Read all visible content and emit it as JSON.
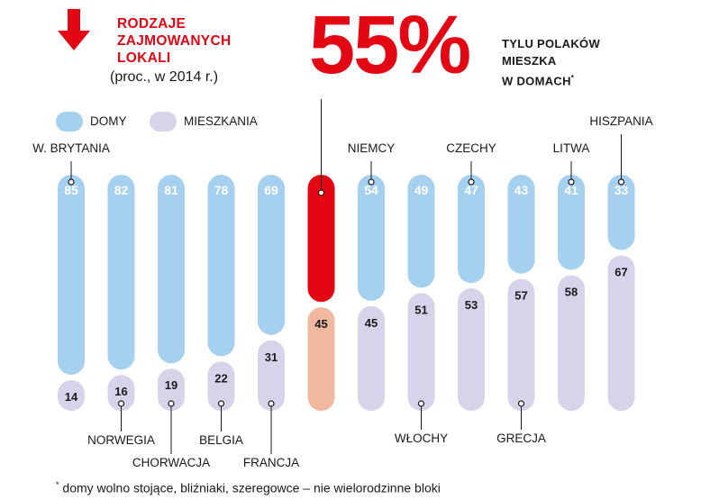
{
  "header": {
    "title_lines": [
      "RODZAJE",
      "ZAJMOWANYCH",
      "LOKALI"
    ],
    "subtitle": "(proc., w 2014 r.)",
    "highlight_value": "55%",
    "highlight_text_lines": [
      "TYLU POLAKÓW",
      "MIESZKA",
      "W DOMACH"
    ],
    "highlight_marker": "*"
  },
  "legend": [
    {
      "label": "DOMY",
      "color": "#a5d0ef"
    },
    {
      "label": "MIESZKANIA",
      "color": "#d6d3ea"
    }
  ],
  "colors": {
    "domy": "#a5d0ef",
    "mieszkania": "#d6d3ea",
    "poland_domy": "#e30613",
    "poland_mieszkania": "#f0b89f",
    "accent": "#e30613"
  },
  "chart_data": {
    "type": "bar",
    "stacked": true,
    "orientation": "vertical",
    "categories": [
      "W. BRYTANIA",
      "NORWEGIA",
      "CHORWACJA",
      "BELGIA",
      "FRANCJA",
      "",
      "NIEMCY",
      "WŁOCHY",
      "CZECHY",
      "GRECJA",
      "LITWA",
      "HISZPANIA"
    ],
    "label_position": [
      "top",
      "bottom",
      "bottom",
      "bottom",
      "bottom",
      "top",
      "top",
      "bottom",
      "top",
      "bottom",
      "top",
      "top"
    ],
    "series": [
      {
        "name": "DOMY",
        "values": [
          85,
          82,
          81,
          78,
          69,
          55,
          54,
          49,
          47,
          43,
          41,
          33
        ]
      },
      {
        "name": "MIESZKANIA",
        "values": [
          14,
          16,
          19,
          22,
          31,
          45,
          45,
          51,
          53,
          57,
          58,
          67
        ]
      }
    ],
    "ylim": [
      0,
      100
    ]
  },
  "footnote": {
    "marker": "*",
    "text": " domy wolno stojące, bliźniaki, szeregowce – nie wielorodzinne bloki"
  }
}
